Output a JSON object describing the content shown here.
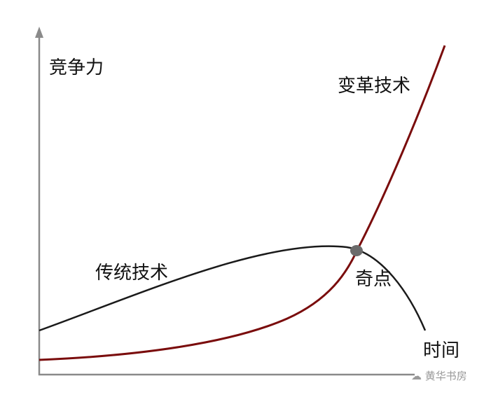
{
  "labels": {
    "y_axis": "竞争力",
    "x_axis": "时间",
    "disruptive_tech": "变革技术",
    "traditional_tech": "传统技术",
    "singularity": "奇点"
  },
  "watermark": "黄华书房",
  "colors": {
    "axis": "#8a8a8a",
    "traditional_curve": "#1a1a1a",
    "disruptive_curve": "#7a0c0c",
    "singularity_dot": "#6b6b6b"
  }
}
